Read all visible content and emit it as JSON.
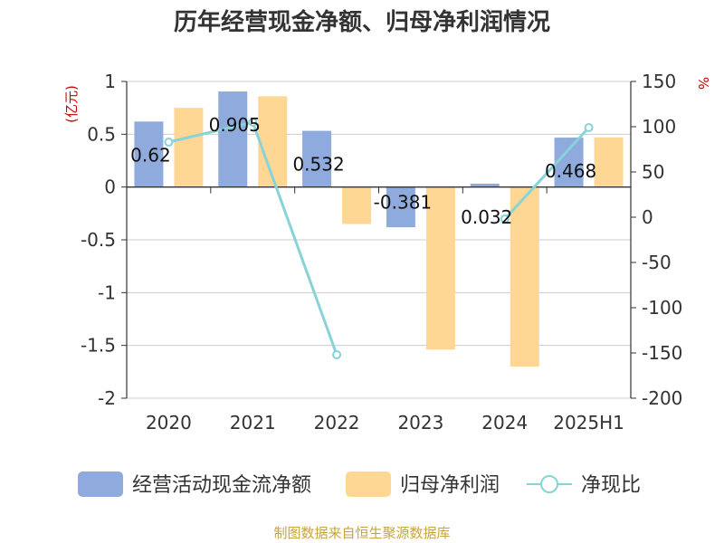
{
  "title": "历年经营现金净额、归母净利润情况",
  "footer": "制图数据来自恒生聚源数据库",
  "chart_data": {
    "type": "bar",
    "categories": [
      "2020",
      "2021",
      "2022",
      "2023",
      "2024",
      "2025H1"
    ],
    "left_axis": {
      "label": "(亿元)",
      "ylim": [
        -2,
        1
      ],
      "ticks": [
        "1",
        "0.5",
        "0",
        "-0.5",
        "-1",
        "-1.5",
        "-2"
      ]
    },
    "right_axis": {
      "label": "%",
      "ylim": [
        -200,
        150
      ],
      "ticks": [
        "150",
        "100",
        "50",
        "0",
        "-50",
        "-100",
        "-150",
        "-200"
      ]
    },
    "series": [
      {
        "name": "经营活动现金流净额",
        "kind": "bar",
        "axis": "left",
        "color": "#8faadc",
        "values": [
          0.62,
          0.905,
          0.532,
          -0.381,
          0.032,
          0.468
        ],
        "labels": [
          "0.62",
          "0.905",
          "0.532",
          "-0.381",
          "0.032",
          "0.468"
        ]
      },
      {
        "name": "归母净利润",
        "kind": "bar",
        "axis": "left",
        "color": "#ffd794",
        "values": [
          0.75,
          0.86,
          -0.35,
          -1.54,
          -1.7,
          0.47
        ]
      },
      {
        "name": "净现比",
        "kind": "line",
        "axis": "right",
        "color": "#87d3d8",
        "values": [
          83,
          105,
          -152,
          null,
          -2,
          99
        ]
      }
    ],
    "grid": true,
    "legend": "bottom"
  }
}
